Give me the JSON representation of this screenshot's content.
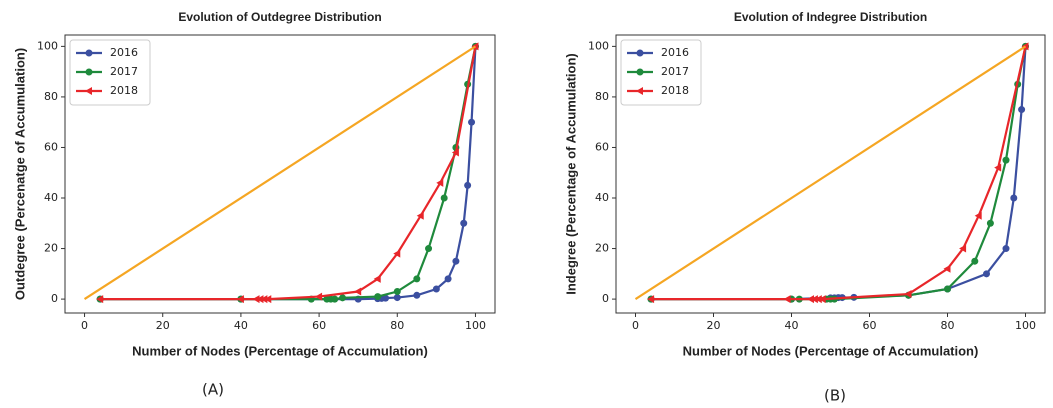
{
  "chart_data": [
    {
      "type": "line",
      "title": "Evolution of Outdegree Distribution",
      "caption": "(A)",
      "xlabel": "Number of Nodes (Percentage of Accumulation)",
      "ylabel": "Outdegree (Percenatge of Accumulation)",
      "xlim": [
        -5,
        105
      ],
      "ylim": [
        -5.5,
        104.5
      ],
      "xticks": [
        0,
        20,
        40,
        60,
        80,
        100
      ],
      "yticks": [
        0,
        20,
        40,
        60,
        80,
        100
      ],
      "legend": "upper left",
      "series": [
        {
          "name": "2016",
          "color": "#3b4fa0",
          "marker": "circle",
          "x": [
            4,
            40,
            70,
            75,
            76,
            77,
            80,
            85,
            90,
            93,
            95,
            97,
            98,
            99,
            100
          ],
          "values": [
            0,
            0,
            0,
            0.2,
            0.3,
            0.4,
            0.6,
            1.5,
            4,
            8,
            15,
            30,
            45,
            70,
            100
          ]
        },
        {
          "name": "2017",
          "color": "#1f8a3c",
          "marker": "circle",
          "x": [
            4,
            40,
            58,
            62,
            63,
            64,
            66,
            75,
            80,
            85,
            88,
            92,
            95,
            98,
            100
          ],
          "values": [
            0,
            0,
            0,
            0,
            0,
            0,
            0.5,
            1,
            3,
            8,
            20,
            40,
            60,
            85,
            100
          ]
        },
        {
          "name": "2018",
          "color": "#e8262a",
          "marker": "triangle",
          "x": [
            4,
            40,
            44,
            45,
            46,
            47,
            60,
            70,
            75,
            80,
            86,
            91,
            95,
            100
          ],
          "values": [
            0,
            0,
            0,
            0,
            0,
            0,
            1,
            3,
            8,
            18,
            33,
            46,
            58,
            100
          ]
        },
        {
          "color": "#f5a623",
          "x": [
            0,
            100
          ],
          "values": [
            0,
            100
          ]
        }
      ]
    },
    {
      "type": "line",
      "title": "Evolution of Indegree Distribution",
      "caption": "(B)",
      "xlabel": "Number of Nodes (Percentage of Accumulation)",
      "ylabel": "Indegree (Percentage of Accumulation)",
      "xlim": [
        -5,
        105
      ],
      "ylim": [
        -5.5,
        104.5
      ],
      "xticks": [
        0,
        20,
        40,
        60,
        80,
        100
      ],
      "yticks": [
        0,
        20,
        40,
        60,
        80,
        100
      ],
      "legend": "upper left",
      "series": [
        {
          "name": "2016",
          "color": "#3b4fa0",
          "marker": "circle",
          "x": [
            4,
            40,
            50,
            51,
            52,
            53,
            56,
            70,
            80,
            90,
            95,
            97,
            99,
            100
          ],
          "values": [
            0,
            0,
            0.5,
            0.5,
            0.6,
            0.6,
            0.7,
            1.5,
            4,
            10,
            20,
            40,
            75,
            100
          ]
        },
        {
          "name": "2017",
          "color": "#1f8a3c",
          "marker": "circle",
          "x": [
            4,
            40,
            42,
            49,
            50,
            51,
            70,
            80,
            87,
            91,
            95,
            98,
            100
          ],
          "values": [
            0,
            0,
            0,
            0,
            0,
            0,
            1.5,
            4,
            15,
            30,
            55,
            85,
            100
          ]
        },
        {
          "name": "2018",
          "color": "#e8262a",
          "marker": "triangle",
          "x": [
            4,
            39,
            45,
            46,
            47,
            48,
            70,
            80,
            84,
            88,
            93,
            100
          ],
          "values": [
            0,
            0,
            0,
            0,
            0,
            0,
            2,
            12,
            20,
            33,
            52,
            100
          ]
        },
        {
          "color": "#f5a623",
          "x": [
            0,
            100
          ],
          "values": [
            0,
            100
          ]
        }
      ]
    }
  ]
}
